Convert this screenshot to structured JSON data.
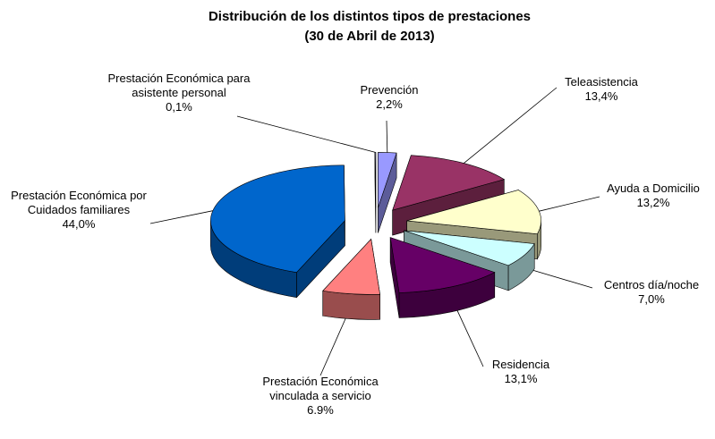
{
  "chart_data": {
    "type": "pie3d",
    "title": "Distribución de los distintos tipos de prestaciones",
    "subtitle": "(30 de Abril de 2013)",
    "categories": [
      "Prevención",
      "Teleasistencia",
      "Ayuda a Domicilio",
      "Centros día/noche",
      "Residencia",
      "Prestación Económica vinculada a servicio",
      "Prestación Económica por Cuidados familiares",
      "Prestación Económica para asistente personal"
    ],
    "values": [
      2.2,
      13.4,
      13.2,
      7.0,
      13.1,
      6.9,
      44.0,
      0.1
    ],
    "value_labels": [
      "2,2%",
      "13,4%",
      "13,2%",
      "7,0%",
      "13,1%",
      "6.9%",
      "44,0%",
      "0,1%"
    ],
    "colors": [
      "#9999ff",
      "#993366",
      "#ffffcc",
      "#ccffff",
      "#660066",
      "#ff8080",
      "#0066cc",
      "#c0c0ff"
    ]
  }
}
